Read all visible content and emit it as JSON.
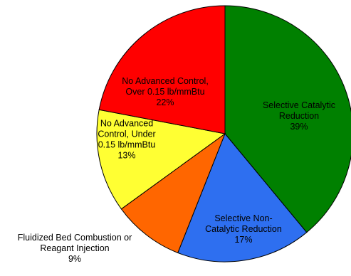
{
  "chart_data": {
    "type": "pie",
    "title": "",
    "slices": [
      {
        "label_lines": [
          "Selective Catalytic",
          "Reduction"
        ],
        "value_label": "39%",
        "value": 39,
        "color": "#008000",
        "text_color": "#000000"
      },
      {
        "label_lines": [
          "Selective Non-",
          "Catalytic Reduction"
        ],
        "value_label": "17%",
        "value": 17,
        "color": "#2e6ff0",
        "text_color": "#000000"
      },
      {
        "label_lines": [
          "Fluidized Bed Combustion or",
          "Reagant Injection"
        ],
        "value_label": "9%",
        "value": 9,
        "color": "#ff6600",
        "text_color": "#000000"
      },
      {
        "label_lines": [
          "No Advanced",
          "Control, Under",
          "0.15 lb/mmBtu"
        ],
        "value_label": "13%",
        "value": 13,
        "color": "#ffff33",
        "text_color": "#000000"
      },
      {
        "label_lines": [
          "No Advanced Control,",
          "Over 0.15 lb/mmBtu"
        ],
        "value_label": "22%",
        "value": 22,
        "color": "#ff0000",
        "text_color": "#000000"
      }
    ]
  }
}
